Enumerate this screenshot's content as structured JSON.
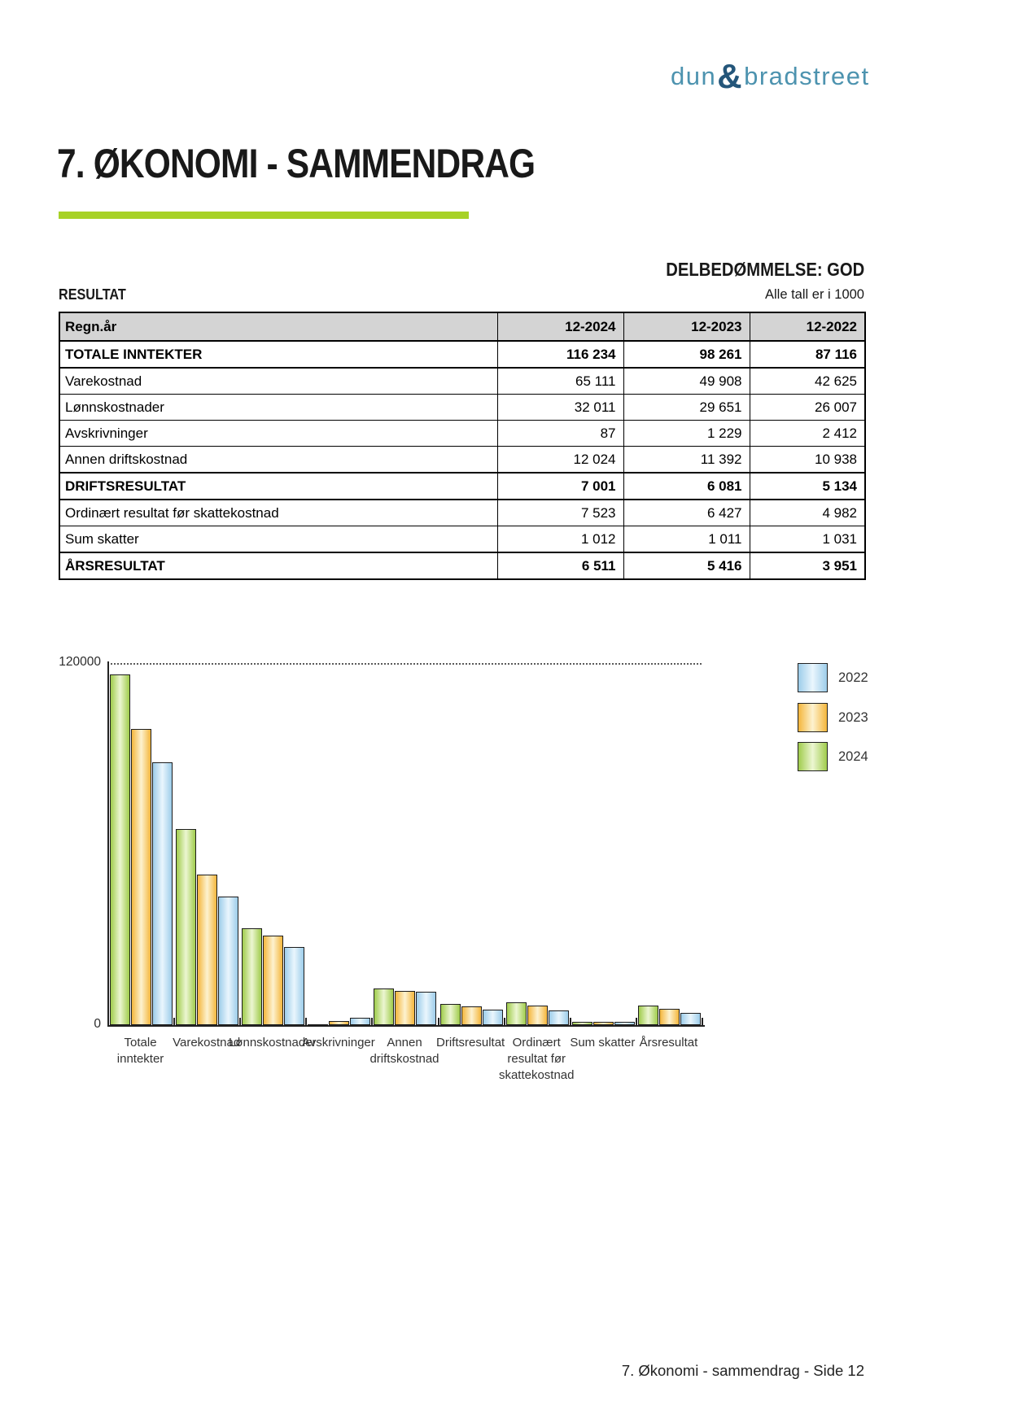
{
  "logo": {
    "part1": "dun",
    "ampersand": "&",
    "part2": "bradstreet",
    "text_color": "#4d93af",
    "amp_color": "#24567a"
  },
  "header": {
    "title": "7. ØKONOMI - SAMMENDRAG",
    "assessment": "DELBEDØMMELSE: GOD",
    "accent_color": "#a7d227"
  },
  "section": {
    "label": "RESULTAT",
    "units_note": "Alle tall er i 1000"
  },
  "table": {
    "header": [
      "Regn.år",
      "12-2024",
      "12-2023",
      "12-2022"
    ],
    "rows": [
      {
        "label": "TOTALE INNTEKTER",
        "values": [
          "116 234",
          "98 261",
          "87 116"
        ],
        "bold": true
      },
      {
        "label": "Varekostnad",
        "values": [
          "65 111",
          "49 908",
          "42 625"
        ],
        "bold": false
      },
      {
        "label": "Lønnskostnader",
        "values": [
          "32 011",
          "29 651",
          "26 007"
        ],
        "bold": false
      },
      {
        "label": "Avskrivninger",
        "values": [
          "87",
          "1 229",
          "2 412"
        ],
        "bold": false
      },
      {
        "label": "Annen driftskostnad",
        "values": [
          "12 024",
          "11 392",
          "10 938"
        ],
        "bold": false
      },
      {
        "label": "DRIFTSRESULTAT",
        "values": [
          "7 001",
          "6 081",
          "5 134"
        ],
        "bold": true
      },
      {
        "label": "Ordinært resultat før skattekostnad",
        "values": [
          "7 523",
          "6 427",
          "4 982"
        ],
        "bold": false
      },
      {
        "label": "Sum skatter",
        "values": [
          "1 012",
          "1 011",
          "1 031"
        ],
        "bold": false
      },
      {
        "label": "ÅRSRESULTAT",
        "values": [
          "6 511",
          "5 416",
          "3 951"
        ],
        "bold": true
      }
    ]
  },
  "chart_data": {
    "type": "bar",
    "title": "",
    "xlabel": "",
    "ylabel": "",
    "ylim": [
      0,
      120000
    ],
    "ytick_labels": [
      "120000",
      "0"
    ],
    "grid": "single dotted gridline at 120000",
    "legend_position": "right-top",
    "categories": [
      "Totale inntekter",
      "Varekostnad",
      "Lønnskostnader",
      "Avskrivninger",
      "Annen driftskostnad",
      "Driftsresultat",
      "Ordinært resultat før skattekostnad",
      "Sum skatter",
      "Årsresultat"
    ],
    "category_lines": [
      [
        "Totale",
        "inntekter"
      ],
      [
        "Varekostnad"
      ],
      [
        "Lønnskostnader"
      ],
      [
        "Avskrivninger"
      ],
      [
        "Annen",
        "driftskostnad"
      ],
      [
        "Driftsresultat"
      ],
      [
        "Ordinært",
        "resultat før",
        "skattekostnad"
      ],
      [
        "Sum skatter"
      ],
      [
        "Årsresultat"
      ]
    ],
    "series": [
      {
        "name": "2024",
        "color_edge": "#a0cc4c",
        "color_light": "#ecf6d2",
        "values": [
          116234,
          65111,
          32011,
          87,
          12024,
          7001,
          7523,
          1012,
          6511
        ]
      },
      {
        "name": "2023",
        "color_edge": "#f4b63c",
        "color_light": "#fdf2d0",
        "values": [
          98261,
          49908,
          29651,
          1229,
          11392,
          6081,
          6427,
          1011,
          5416
        ]
      },
      {
        "name": "2022",
        "color_edge": "#9dcdea",
        "color_light": "#eaf6fd",
        "values": [
          87116,
          42625,
          26007,
          2412,
          10938,
          5134,
          4982,
          1031,
          3951
        ]
      }
    ],
    "bar_order_left_to_right": [
      "2024",
      "2023",
      "2022"
    ],
    "legend_top_to_bottom": [
      "2022",
      "2023",
      "2024"
    ]
  },
  "footer": {
    "text": "7. Økonomi - sammendrag - Side 12"
  }
}
